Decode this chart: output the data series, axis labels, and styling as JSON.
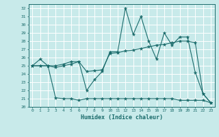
{
  "xlabel": "Humidex (Indice chaleur)",
  "background_color": "#c8eaea",
  "line_color": "#1a6b6b",
  "grid_color": "#ffffff",
  "xlim": [
    -0.5,
    23.5
  ],
  "ylim": [
    20,
    32.5
  ],
  "yticks": [
    20,
    21,
    22,
    23,
    24,
    25,
    26,
    27,
    28,
    29,
    30,
    31,
    32
  ],
  "xticks": [
    0,
    1,
    2,
    3,
    4,
    5,
    6,
    7,
    8,
    9,
    10,
    11,
    12,
    13,
    14,
    15,
    16,
    17,
    18,
    19,
    20,
    21,
    22,
    23
  ],
  "series_volatile_x": [
    0,
    1,
    2,
    3,
    4,
    5,
    6,
    7,
    8,
    9,
    10,
    11,
    12,
    13,
    14,
    15,
    16,
    17,
    18,
    19,
    20,
    21,
    22,
    23
  ],
  "series_volatile_y": [
    25.0,
    25.8,
    25.0,
    25.0,
    25.2,
    25.5,
    25.5,
    22.0,
    23.3,
    24.3,
    26.7,
    26.7,
    32.0,
    28.8,
    31.0,
    28.0,
    25.8,
    29.0,
    27.5,
    28.5,
    28.5,
    24.2,
    21.6,
    20.5
  ],
  "series_trend_x": [
    0,
    1,
    2,
    3,
    4,
    5,
    6,
    7,
    8,
    9,
    10,
    11,
    12,
    13,
    14,
    15,
    16,
    17,
    18,
    19,
    20,
    21,
    22,
    23
  ],
  "series_trend_y": [
    25.0,
    25.0,
    25.0,
    24.8,
    25.0,
    25.2,
    25.5,
    24.3,
    24.4,
    24.5,
    26.5,
    26.6,
    26.8,
    26.9,
    27.1,
    27.3,
    27.5,
    27.6,
    27.8,
    28.0,
    28.0,
    27.8,
    21.6,
    20.5
  ],
  "series_flat_x": [
    0,
    1,
    2,
    3,
    4,
    5,
    6,
    7,
    8,
    9,
    10,
    11,
    12,
    13,
    14,
    15,
    16,
    17,
    18,
    19,
    20,
    21,
    22,
    23
  ],
  "series_flat_y": [
    25.0,
    25.0,
    25.0,
    21.1,
    21.0,
    21.0,
    20.8,
    21.0,
    21.0,
    21.0,
    21.0,
    21.0,
    21.0,
    21.0,
    21.0,
    21.0,
    21.0,
    21.0,
    21.0,
    20.8,
    20.8,
    20.8,
    20.8,
    20.5
  ]
}
